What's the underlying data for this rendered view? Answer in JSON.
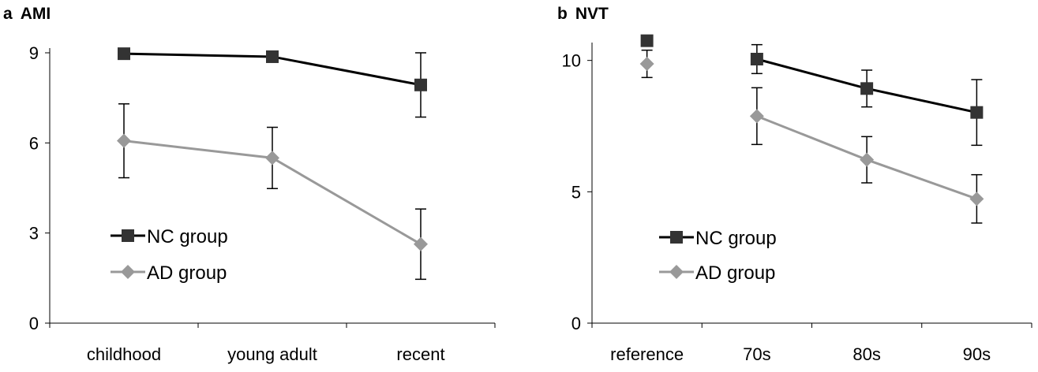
{
  "chart_data": [
    {
      "panel_label": "a",
      "title": "AMI",
      "type": "line",
      "categories": [
        "childhood",
        "young adult",
        "recent"
      ],
      "ylim": [
        0,
        9
      ],
      "yticks": [
        "0",
        "3",
        "6",
        "9"
      ],
      "legend_position": "lower-left",
      "series": [
        {
          "name": "NC group",
          "marker": "square",
          "color": "#000000",
          "marker_color": "#333333",
          "values": [
            8.97,
            8.87,
            7.93
          ],
          "err": [
            null,
            null,
            1.07
          ]
        },
        {
          "name": "AD group",
          "marker": "diamond",
          "color": "#999999",
          "marker_color": "#999999",
          "values": [
            6.07,
            5.5,
            2.63
          ],
          "err": [
            1.23,
            1.02,
            1.17
          ]
        }
      ]
    },
    {
      "panel_label": "b",
      "title": "NVT",
      "type": "line",
      "categories": [
        "reference",
        "70s",
        "80s",
        "90s"
      ],
      "ylim": [
        0,
        10.5
      ],
      "yticks": [
        "0",
        "5",
        "10"
      ],
      "legend_position": "lower-left",
      "series": [
        {
          "name": "NC group",
          "marker": "square",
          "color": "#000000",
          "marker_color": "#333333",
          "values": [
            10.75,
            10.05,
            8.93,
            8.02
          ],
          "err": [
            null,
            0.55,
            0.7,
            1.25
          ],
          "connect_from": 1
        },
        {
          "name": "AD group",
          "marker": "diamond",
          "color": "#999999",
          "marker_color": "#999999",
          "values": [
            9.87,
            7.88,
            6.22,
            4.73
          ],
          "err": [
            0.52,
            1.08,
            0.88,
            0.92
          ],
          "connect_from": 1
        }
      ]
    }
  ]
}
